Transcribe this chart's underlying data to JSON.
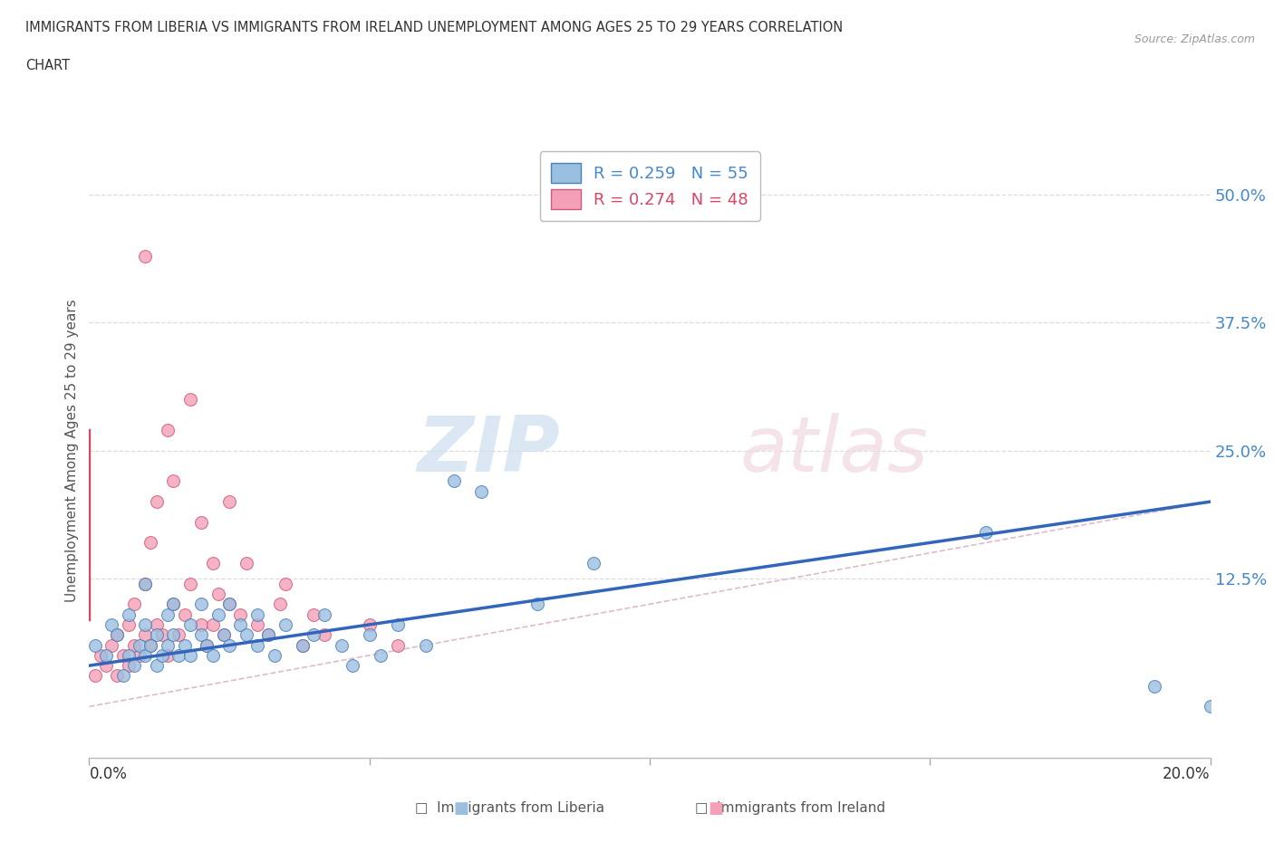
{
  "title_line1": "IMMIGRANTS FROM LIBERIA VS IMMIGRANTS FROM IRELAND UNEMPLOYMENT AMONG AGES 25 TO 29 YEARS CORRELATION",
  "title_line2": "CHART",
  "source": "Source: ZipAtlas.com",
  "ylabel": "Unemployment Among Ages 25 to 29 years",
  "yticks": [
    0.0,
    0.125,
    0.25,
    0.375,
    0.5
  ],
  "ytick_labels": [
    "",
    "12.5%",
    "25.0%",
    "37.5%",
    "50.0%"
  ],
  "xlim": [
    0.0,
    0.2
  ],
  "ylim": [
    -0.05,
    0.55
  ],
  "legend_entries": [
    {
      "label": "R = 0.259   N = 55",
      "color": "#a8c8e8"
    },
    {
      "label": "R = 0.274   N = 48",
      "color": "#f4b8c8"
    }
  ],
  "liberia_color": "#9bbfdf",
  "ireland_color": "#f4a0b8",
  "liberia_edge": "#4a80b8",
  "ireland_edge": "#d05878",
  "scatter_alpha": 0.8,
  "dot_size": 100,
  "trend_liberia_color": "#3366bb",
  "trend_ireland_color": "#dd4466",
  "diagonal_color": "#ddbbcc",
  "trend_liberia": [
    0.0,
    0.2,
    0.04,
    0.2
  ],
  "trend_ireland": [
    0.0,
    0.0,
    0.085,
    0.27
  ],
  "liberia_points": [
    [
      0.001,
      0.06
    ],
    [
      0.003,
      0.05
    ],
    [
      0.004,
      0.08
    ],
    [
      0.005,
      0.07
    ],
    [
      0.006,
      0.03
    ],
    [
      0.007,
      0.05
    ],
    [
      0.007,
      0.09
    ],
    [
      0.008,
      0.04
    ],
    [
      0.009,
      0.06
    ],
    [
      0.01,
      0.05
    ],
    [
      0.01,
      0.08
    ],
    [
      0.01,
      0.12
    ],
    [
      0.011,
      0.06
    ],
    [
      0.012,
      0.04
    ],
    [
      0.012,
      0.07
    ],
    [
      0.013,
      0.05
    ],
    [
      0.014,
      0.06
    ],
    [
      0.014,
      0.09
    ],
    [
      0.015,
      0.07
    ],
    [
      0.015,
      0.1
    ],
    [
      0.016,
      0.05
    ],
    [
      0.017,
      0.06
    ],
    [
      0.018,
      0.08
    ],
    [
      0.018,
      0.05
    ],
    [
      0.02,
      0.07
    ],
    [
      0.02,
      0.1
    ],
    [
      0.021,
      0.06
    ],
    [
      0.022,
      0.05
    ],
    [
      0.023,
      0.09
    ],
    [
      0.024,
      0.07
    ],
    [
      0.025,
      0.06
    ],
    [
      0.025,
      0.1
    ],
    [
      0.027,
      0.08
    ],
    [
      0.028,
      0.07
    ],
    [
      0.03,
      0.06
    ],
    [
      0.03,
      0.09
    ],
    [
      0.032,
      0.07
    ],
    [
      0.033,
      0.05
    ],
    [
      0.035,
      0.08
    ],
    [
      0.038,
      0.06
    ],
    [
      0.04,
      0.07
    ],
    [
      0.042,
      0.09
    ],
    [
      0.045,
      0.06
    ],
    [
      0.047,
      0.04
    ],
    [
      0.05,
      0.07
    ],
    [
      0.052,
      0.05
    ],
    [
      0.055,
      0.08
    ],
    [
      0.06,
      0.06
    ],
    [
      0.065,
      0.22
    ],
    [
      0.07,
      0.21
    ],
    [
      0.08,
      0.1
    ],
    [
      0.09,
      0.14
    ],
    [
      0.16,
      0.17
    ],
    [
      0.19,
      0.02
    ],
    [
      0.2,
      0.0
    ]
  ],
  "ireland_points": [
    [
      0.001,
      0.03
    ],
    [
      0.002,
      0.05
    ],
    [
      0.003,
      0.04
    ],
    [
      0.004,
      0.06
    ],
    [
      0.005,
      0.03
    ],
    [
      0.005,
      0.07
    ],
    [
      0.006,
      0.05
    ],
    [
      0.007,
      0.04
    ],
    [
      0.007,
      0.08
    ],
    [
      0.008,
      0.06
    ],
    [
      0.008,
      0.1
    ],
    [
      0.009,
      0.05
    ],
    [
      0.01,
      0.07
    ],
    [
      0.01,
      0.12
    ],
    [
      0.011,
      0.06
    ],
    [
      0.011,
      0.16
    ],
    [
      0.012,
      0.08
    ],
    [
      0.012,
      0.2
    ],
    [
      0.013,
      0.07
    ],
    [
      0.014,
      0.05
    ],
    [
      0.014,
      0.27
    ],
    [
      0.015,
      0.1
    ],
    [
      0.015,
      0.22
    ],
    [
      0.016,
      0.07
    ],
    [
      0.017,
      0.09
    ],
    [
      0.018,
      0.12
    ],
    [
      0.018,
      0.3
    ],
    [
      0.02,
      0.08
    ],
    [
      0.02,
      0.18
    ],
    [
      0.021,
      0.06
    ],
    [
      0.022,
      0.08
    ],
    [
      0.022,
      0.14
    ],
    [
      0.023,
      0.11
    ],
    [
      0.024,
      0.07
    ],
    [
      0.025,
      0.1
    ],
    [
      0.025,
      0.2
    ],
    [
      0.027,
      0.09
    ],
    [
      0.028,
      0.14
    ],
    [
      0.03,
      0.08
    ],
    [
      0.032,
      0.07
    ],
    [
      0.034,
      0.1
    ],
    [
      0.035,
      0.12
    ],
    [
      0.038,
      0.06
    ],
    [
      0.04,
      0.09
    ],
    [
      0.042,
      0.07
    ],
    [
      0.05,
      0.08
    ],
    [
      0.055,
      0.06
    ],
    [
      0.01,
      0.44
    ]
  ]
}
